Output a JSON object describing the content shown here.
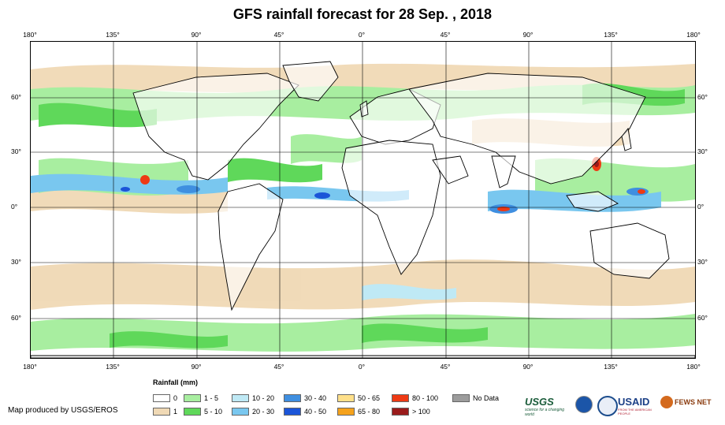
{
  "title": "GFS rainfall forecast for 28 Sep. , 2018",
  "lon_ticks": [
    "180°",
    "135°",
    "90°",
    "45°",
    "0°",
    "45°",
    "90°",
    "135°",
    "180°"
  ],
  "lat_ticks": [
    "60°",
    "30°",
    "0°",
    "30°",
    "60°"
  ],
  "legend": {
    "title": "Rainfall (mm)",
    "items": [
      {
        "label": "0",
        "color": "#ffffff"
      },
      {
        "label": "1",
        "color": "#f0d9b5"
      },
      {
        "label": "1 - 5",
        "color": "#a8eea0"
      },
      {
        "label": "5 - 10",
        "color": "#5fd85a"
      },
      {
        "label": "10 - 20",
        "color": "#bfe9f5"
      },
      {
        "label": "20 - 30",
        "color": "#79c7ef"
      },
      {
        "label": "30 - 40",
        "color": "#3f8fe0"
      },
      {
        "label": "40 - 50",
        "color": "#1b55d8"
      },
      {
        "label": "50 - 65",
        "color": "#ffe08a"
      },
      {
        "label": "65 - 80",
        "color": "#f5a21c"
      },
      {
        "label": "80 - 100",
        "color": "#ee3a14"
      },
      {
        "label": "> 100",
        "color": "#9a1b1b"
      },
      {
        "label": "No Data",
        "color": "#9c9c9c"
      }
    ]
  },
  "credit": "Map produced by USGS/EROS",
  "logos": {
    "usgs": "USGS",
    "usgs_tag": "science for a changing world",
    "usaid": "USAID",
    "usaid_tag": "FROM THE AMERICAN PEOPLE",
    "fews": "FEWS NET"
  },
  "colors": {
    "ocean": "#ffffff",
    "land_outline": "#000000",
    "grid": "#000000"
  }
}
